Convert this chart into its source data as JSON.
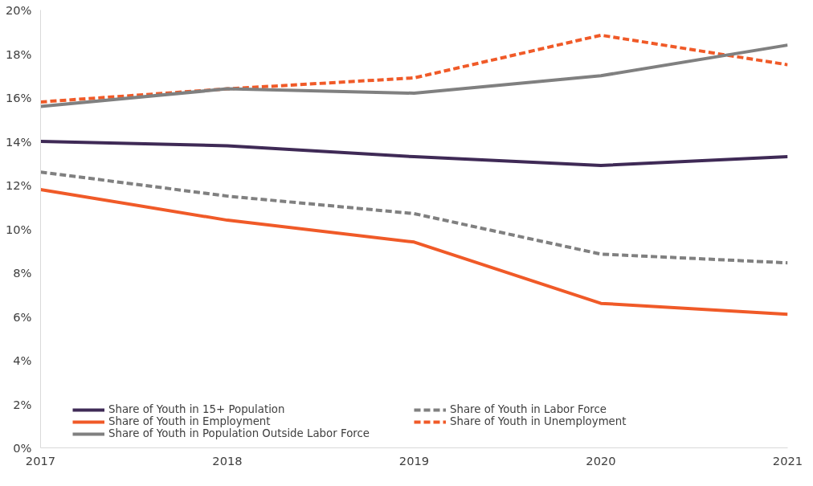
{
  "chart_data": {
    "type": "line",
    "x": [
      2017,
      2018,
      2019,
      2020,
      2021
    ],
    "xlim": [
      2017,
      2021
    ],
    "xticks": [
      2017,
      2018,
      2019,
      2020,
      2021
    ],
    "ylim": [
      0,
      20
    ],
    "yticks": [
      {
        "value": 0,
        "label": "0%"
      },
      {
        "value": 2,
        "label": "2%"
      },
      {
        "value": 4,
        "label": "4%"
      },
      {
        "value": 6,
        "label": "6%"
      },
      {
        "value": 8,
        "label": "8%"
      },
      {
        "value": 10,
        "label": "10%"
      },
      {
        "value": 12,
        "label": "12%"
      },
      {
        "value": 14,
        "label": "14%"
      },
      {
        "value": 16,
        "label": "16%"
      },
      {
        "value": 18,
        "label": "18%"
      },
      {
        "value": 20,
        "label": "20%"
      }
    ],
    "grid": false,
    "legend": "bottom",
    "marker": "none",
    "series": [
      {
        "name": "Share of Youth in 15+ Population",
        "color": "#3f2a56",
        "line_style": "solid",
        "values": [
          14.0,
          13.8,
          13.3,
          12.9,
          13.3
        ]
      },
      {
        "name": "Share of Youth in Labor Force",
        "color": "#808080",
        "line_style": "dashed",
        "values": [
          12.6,
          11.5,
          10.7,
          8.85,
          8.45
        ]
      },
      {
        "name": "Share of Youth in Employment",
        "color": "#f05a28",
        "line_style": "solid",
        "values": [
          11.8,
          10.4,
          9.4,
          6.6,
          6.1
        ]
      },
      {
        "name": "Share of Youth in Unemployment",
        "color": "#f05a28",
        "line_style": "dashed",
        "values": [
          15.8,
          16.4,
          16.9,
          18.85,
          17.5
        ]
      },
      {
        "name": "Share of Youth in Population Outside Labor Force",
        "color": "#808080",
        "line_style": "solid",
        "values": [
          15.6,
          16.4,
          16.2,
          17.0,
          18.4
        ]
      }
    ]
  }
}
